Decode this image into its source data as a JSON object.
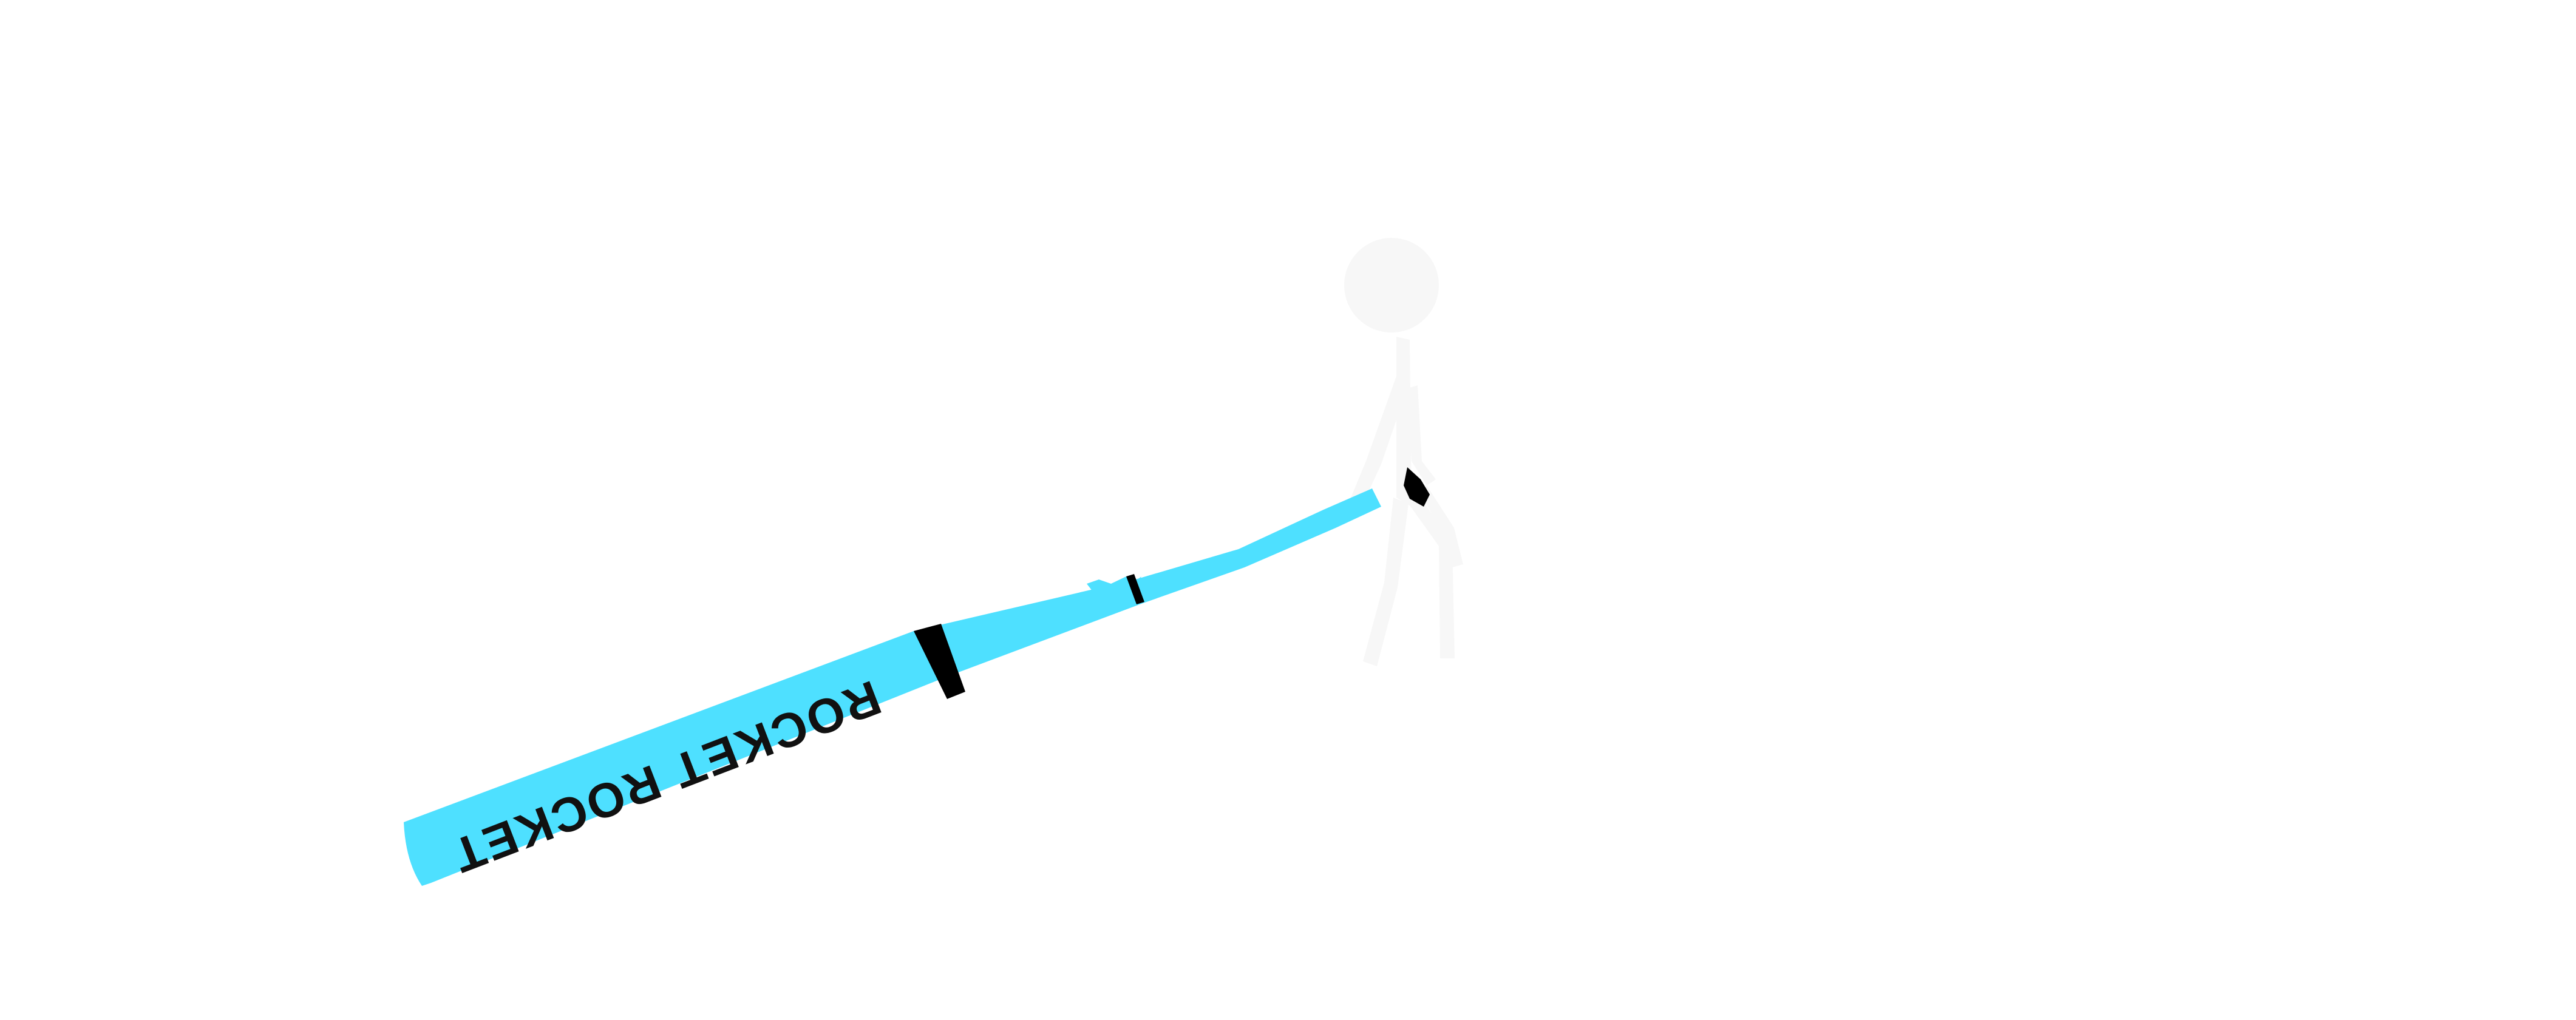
{
  "scene": {
    "background_color": "#ffffff",
    "bat": {
      "label": "ROCKET ROCKET",
      "color": "#4ee0ff",
      "band_color": "#000000",
      "label_color": "#111111"
    },
    "player": {
      "color": "#f7f7f7",
      "glove_color": "#000000"
    }
  }
}
